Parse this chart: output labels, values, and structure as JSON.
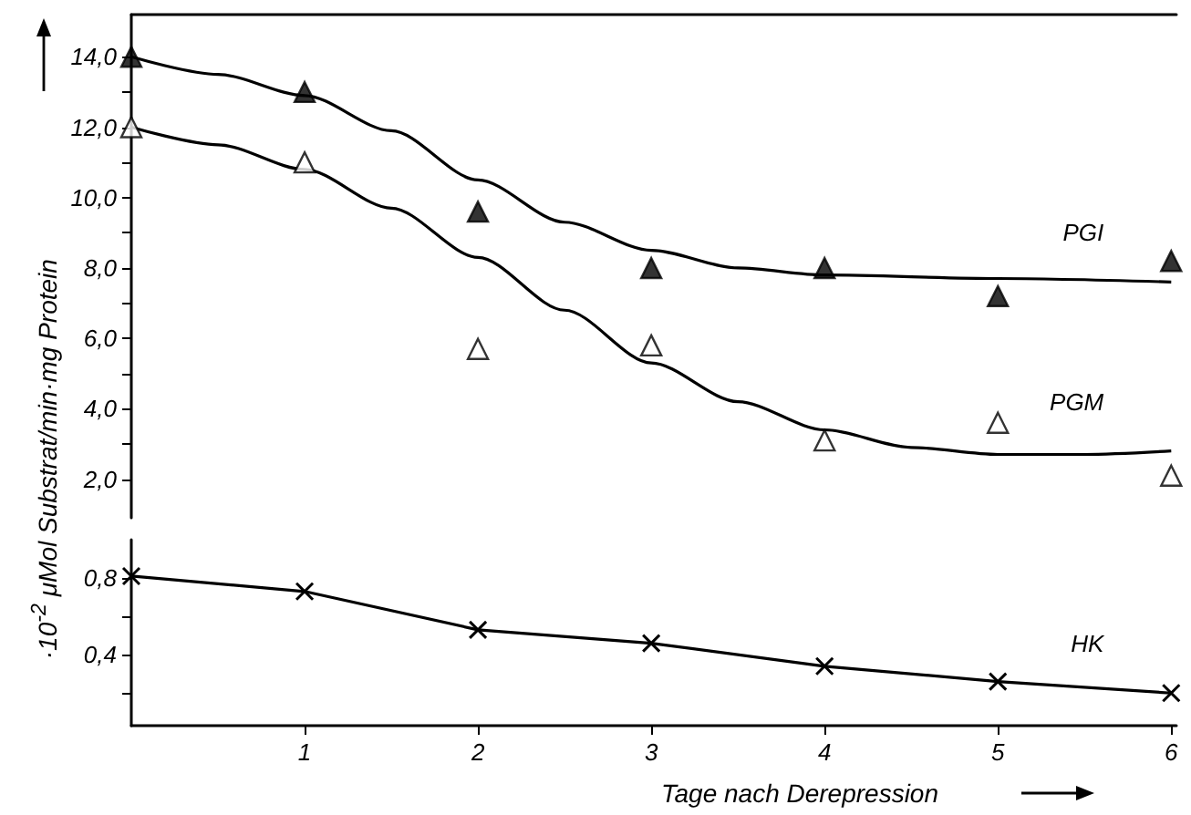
{
  "chart_data": [
    {
      "type": "line",
      "ylabel": "·10$^{-2}$ μMol Substrat/min·mg Protein",
      "xlim": [
        0,
        6.03
      ],
      "ylim": [
        0.9,
        15.2
      ],
      "tick_labels": "y",
      "grid": false,
      "yticks": [
        {
          "value": 2,
          "label": "2,0"
        },
        {
          "value": 3,
          "label": null
        },
        {
          "value": 4,
          "label": "4,0"
        },
        {
          "value": 5,
          "label": null
        },
        {
          "value": 6,
          "label": "6,0"
        },
        {
          "value": 7,
          "label": null
        },
        {
          "value": 8,
          "label": "8,0"
        },
        {
          "value": 9,
          "label": null
        },
        {
          "value": 10,
          "label": "10,0"
        },
        {
          "value": 11,
          "label": null
        },
        {
          "value": 12,
          "label": "12,0"
        },
        {
          "value": 13,
          "label": null
        },
        {
          "value": 14,
          "label": "14,0"
        }
      ],
      "series": [
        {
          "name": "PGI",
          "color": "#000000",
          "marker": "none",
          "x": [
            0,
            0.5,
            1,
            1.5,
            2,
            2.5,
            3,
            3.5,
            4,
            5,
            6
          ],
          "values": [
            14.0,
            13.5,
            12.9,
            11.9,
            10.5,
            9.3,
            8.5,
            8.0,
            7.8,
            7.7,
            7.6
          ]
        },
        {
          "type": "scatter",
          "color": "#000000",
          "marker": "triangle",
          "x": [
            0,
            1,
            2,
            3,
            4,
            5,
            6
          ],
          "values": [
            14.0,
            13.0,
            9.6,
            8.0,
            8.0,
            7.2,
            8.2
          ]
        },
        {
          "name": "PGM",
          "color": "#000000",
          "marker": "none",
          "x": [
            0,
            0.5,
            1,
            1.5,
            2,
            2.5,
            3,
            3.5,
            4,
            4.5,
            5,
            5.5,
            6
          ],
          "values": [
            12.0,
            11.5,
            10.8,
            9.7,
            8.3,
            6.8,
            5.3,
            4.2,
            3.4,
            2.9,
            2.7,
            2.7,
            2.8
          ]
        },
        {
          "type": "scatter",
          "color": "#ffffff",
          "marker": "triangle",
          "x": [
            0,
            1,
            2,
            3,
            4,
            5,
            6
          ],
          "values": [
            12.0,
            11.0,
            5.7,
            5.8,
            3.1,
            3.6,
            2.1
          ]
        }
      ]
    },
    {
      "type": "line",
      "xlabel": "Tage nach Derepression",
      "xlim": [
        0,
        6.03
      ],
      "ylim": [
        0.03,
        1.0
      ],
      "grid": false,
      "xticks": [
        1,
        2,
        3,
        4,
        5,
        6
      ],
      "yticks": [
        {
          "value": 0.2,
          "label": null
        },
        {
          "value": 0.4,
          "label": "0,4"
        },
        {
          "value": 0.6,
          "label": null
        },
        {
          "value": 0.8,
          "label": "0,8"
        }
      ],
      "series": [
        {
          "name": "HK",
          "color": "#000000",
          "marker": "cross",
          "x": [
            0,
            1,
            2,
            3,
            4,
            5,
            6
          ],
          "values": [
            0.81,
            0.73,
            0.53,
            0.46,
            0.34,
            0.26,
            0.2
          ]
        }
      ]
    }
  ]
}
